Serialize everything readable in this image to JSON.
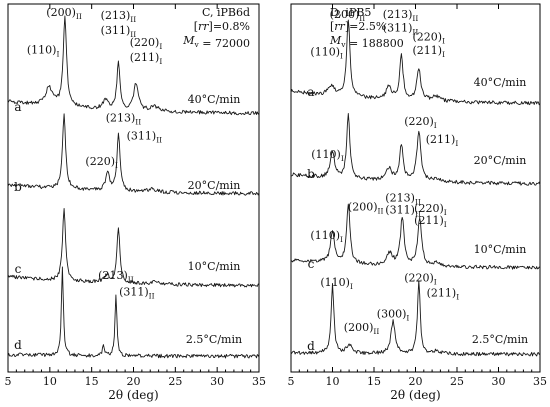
{
  "chart_data": [
    {
      "type": "line",
      "panel": "C",
      "title_lines": [
        {
          "text": "C, iPB6d"
        },
        {
          "parts": [
            {
              "t": "["
            },
            {
              "t": "rr",
              "it": true
            },
            {
              "t": "]=0.8%"
            }
          ]
        },
        {
          "parts": [
            {
              "t": "M",
              "it": true
            },
            {
              "t": "v",
              "sub": true
            },
            {
              "t": " = 72000"
            }
          ]
        }
      ],
      "xlabel": "2θ (deg)",
      "ylabel": "",
      "xlim": [
        5,
        35
      ],
      "xticks": [
        5,
        10,
        15,
        20,
        25,
        30,
        35
      ],
      "grid": false,
      "series": [
        {
          "trace_label": "a",
          "rate": "40°C/min",
          "baseline": 0.04,
          "peaks": [
            [
              9.9,
              0.06,
              0.5
            ],
            [
              11.8,
              0.3,
              0.24
            ],
            [
              16.7,
              0.03,
              0.4
            ],
            [
              18.2,
              0.16,
              0.22
            ],
            [
              20.3,
              0.09,
              0.32
            ],
            [
              22.5,
              0.015,
              0.6
            ]
          ],
          "peak_labels": [
            {
              "x": 9.2,
              "y": 0.215,
              "parts": [
                {
                  "t": "(110)"
                },
                {
                  "t": "I",
                  "sub": true
                }
              ]
            },
            {
              "x": 11.7,
              "y": 0.34,
              "parts": [
                {
                  "t": "(200)"
                },
                {
                  "t": "II",
                  "sub": true
                }
              ]
            },
            {
              "x": 18.2,
              "y": 0.33,
              "parts": [
                {
                  "t": "(213)"
                },
                {
                  "t": "II",
                  "sub": true
                }
              ]
            },
            {
              "x": 18.2,
              "y": 0.28,
              "parts": [
                {
                  "t": "(311)"
                },
                {
                  "t": "II",
                  "sub": true
                }
              ]
            },
            {
              "x": 21.5,
              "y": 0.24,
              "parts": [
                {
                  "t": "(220)"
                },
                {
                  "t": "I",
                  "sub": true
                }
              ]
            },
            {
              "x": 21.5,
              "y": 0.19,
              "parts": [
                {
                  "t": "(211)"
                },
                {
                  "t": "I",
                  "sub": true
                }
              ]
            }
          ]
        },
        {
          "trace_label": "b",
          "rate": "20°C/min",
          "baseline": 0.03,
          "peaks": [
            [
              11.7,
              0.25,
              0.22
            ],
            [
              16.9,
              0.06,
              0.28
            ],
            [
              18.2,
              0.19,
              0.22
            ],
            [
              22.2,
              0.01,
              0.6
            ]
          ],
          "peak_labels": [
            {
              "x": 16.2,
              "y": 0.11,
              "parts": [
                {
                  "t": "(220)"
                },
                {
                  "t": "I",
                  "sub": true
                }
              ]
            },
            {
              "x": 18.8,
              "y": 0.255,
              "parts": [
                {
                  "t": "(213)"
                },
                {
                  "t": "II",
                  "sub": true
                }
              ]
            },
            {
              "x": 21.3,
              "y": 0.195,
              "parts": [
                {
                  "t": "(311)"
                },
                {
                  "t": "II",
                  "sub": true
                }
              ]
            }
          ]
        },
        {
          "trace_label": "c",
          "rate": "10°C/min",
          "baseline": 0.03,
          "peaks": [
            [
              11.7,
              0.24,
              0.22
            ],
            [
              16.8,
              0.025,
              0.4
            ],
            [
              18.2,
              0.18,
              0.22
            ],
            [
              22.6,
              0.01,
              0.6
            ]
          ],
          "peak_labels": []
        },
        {
          "trace_label": "d",
          "rate": "2.5°C/min",
          "baseline": 0.005,
          "peaks": [
            [
              11.5,
              0.29,
              0.14
            ],
            [
              16.4,
              0.04,
              0.12
            ],
            [
              17.9,
              0.2,
              0.14
            ]
          ],
          "peak_labels": [
            {
              "x": 17.9,
              "y": 0.27,
              "parts": [
                {
                  "t": "(213)"
                },
                {
                  "t": "II",
                  "sub": true
                }
              ]
            },
            {
              "x": 20.4,
              "y": 0.215,
              "parts": [
                {
                  "t": "(311)"
                },
                {
                  "t": "II",
                  "sub": true
                }
              ]
            }
          ]
        }
      ]
    },
    {
      "type": "line",
      "panel": "D",
      "title_lines": [
        {
          "text": "D, iPB5"
        },
        {
          "parts": [
            {
              "t": "["
            },
            {
              "t": "rr",
              "it": true
            },
            {
              "t": "]=2.5%"
            }
          ]
        },
        {
          "parts": [
            {
              "t": "M",
              "it": true
            },
            {
              "t": "v",
              "sub": true
            },
            {
              "t": " = 188800"
            }
          ]
        }
      ],
      "xlabel": "2θ (deg)",
      "ylabel": "",
      "xlim": [
        5,
        35
      ],
      "xticks": [
        5,
        10,
        15,
        20,
        25,
        30,
        35
      ],
      "grid": false,
      "series": [
        {
          "trace_label": "a",
          "rate": "40°C/min",
          "baseline": 0.04,
          "peaks": [
            [
              9.9,
              0.03,
              0.5
            ],
            [
              11.9,
              0.26,
              0.24
            ],
            [
              16.8,
              0.04,
              0.4
            ],
            [
              18.3,
              0.15,
              0.24
            ],
            [
              20.4,
              0.1,
              0.3
            ],
            [
              22.5,
              0.015,
              0.6
            ]
          ],
          "peak_labels": [
            {
              "x": 9.3,
              "y": 0.175,
              "parts": [
                {
                  "t": "(110)"
                },
                {
                  "t": "I",
                  "sub": true
                }
              ]
            },
            {
              "x": 11.8,
              "y": 0.3,
              "parts": [
                {
                  "t": "(200)"
                },
                {
                  "t": "II",
                  "sub": true
                }
              ]
            },
            {
              "x": 18.2,
              "y": 0.3,
              "parts": [
                {
                  "t": "(213)"
                },
                {
                  "t": "II",
                  "sub": true
                }
              ]
            },
            {
              "x": 18.2,
              "y": 0.255,
              "parts": [
                {
                  "t": "(311)"
                },
                {
                  "t": "II",
                  "sub": true
                }
              ]
            },
            {
              "x": 21.6,
              "y": 0.225,
              "parts": [
                {
                  "t": "(220)"
                },
                {
                  "t": "I",
                  "sub": true
                }
              ]
            },
            {
              "x": 21.6,
              "y": 0.18,
              "parts": [
                {
                  "t": "(211)"
                },
                {
                  "t": "I",
                  "sub": true
                }
              ]
            }
          ]
        },
        {
          "trace_label": "b",
          "rate": "20°C/min",
          "baseline": 0.03,
          "peaks": [
            [
              10.0,
              0.09,
              0.3
            ],
            [
              11.9,
              0.22,
              0.22
            ],
            [
              16.8,
              0.04,
              0.4
            ],
            [
              18.3,
              0.12,
              0.26
            ],
            [
              20.4,
              0.17,
              0.28
            ],
            [
              22.5,
              0.01,
              0.6
            ]
          ],
          "peak_labels": [
            {
              "x": 9.4,
              "y": 0.1,
              "parts": [
                {
                  "t": "(110)"
                },
                {
                  "t": "I",
                  "sub": true
                }
              ]
            },
            {
              "x": 20.6,
              "y": 0.21,
              "parts": [
                {
                  "t": "(220)"
                },
                {
                  "t": "I",
                  "sub": true
                }
              ]
            },
            {
              "x": 23.2,
              "y": 0.15,
              "parts": [
                {
                  "t": "(211)"
                },
                {
                  "t": "I",
                  "sub": true
                }
              ]
            }
          ]
        },
        {
          "trace_label": "c",
          "rate": "10°C/min",
          "baseline": 0.025,
          "peaks": [
            [
              10.0,
              0.1,
              0.3
            ],
            [
              11.9,
              0.2,
              0.24
            ],
            [
              16.9,
              0.04,
              0.4
            ],
            [
              18.4,
              0.16,
              0.26
            ],
            [
              20.5,
              0.16,
              0.28
            ],
            [
              22.6,
              0.01,
              0.6
            ]
          ],
          "peak_labels": [
            {
              "x": 9.3,
              "y": 0.11,
              "parts": [
                {
                  "t": "(110)"
                },
                {
                  "t": "I",
                  "sub": true
                }
              ]
            },
            {
              "x": 14.0,
              "y": 0.205,
              "parts": [
                {
                  "t": "(200)"
                },
                {
                  "t": "II",
                  "sub": true
                }
              ]
            },
            {
              "x": 18.5,
              "y": 0.235,
              "parts": [
                {
                  "t": "(213)"
                },
                {
                  "t": "II",
                  "sub": true
                }
              ]
            },
            {
              "x": 18.5,
              "y": 0.195,
              "parts": [
                {
                  "t": "(311)"
                },
                {
                  "t": "II",
                  "sub": true
                }
              ]
            },
            {
              "x": 21.8,
              "y": 0.2,
              "parts": [
                {
                  "t": "(220)"
                },
                {
                  "t": "I",
                  "sub": true
                }
              ]
            },
            {
              "x": 21.8,
              "y": 0.16,
              "parts": [
                {
                  "t": "(211)"
                },
                {
                  "t": "I",
                  "sub": true
                }
              ]
            }
          ]
        },
        {
          "trace_label": "d",
          "rate": "2.5°C/min",
          "baseline": 0.005,
          "peaks": [
            [
              10.0,
              0.23,
              0.2
            ],
            [
              12.0,
              0.03,
              0.35
            ],
            [
              17.3,
              0.11,
              0.3
            ],
            [
              20.4,
              0.24,
              0.2
            ],
            [
              22.5,
              0.01,
              0.5
            ]
          ],
          "peak_labels": [
            {
              "x": 10.5,
              "y": 0.24,
              "parts": [
                {
                  "t": "(110)"
                },
                {
                  "t": "I",
                  "sub": true
                }
              ]
            },
            {
              "x": 20.6,
              "y": 0.255,
              "parts": [
                {
                  "t": "(220)"
                },
                {
                  "t": "I",
                  "sub": true
                }
              ]
            },
            {
              "x": 13.5,
              "y": 0.09,
              "parts": [
                {
                  "t": "(200)"
                },
                {
                  "t": "II",
                  "sub": true
                }
              ]
            },
            {
              "x": 17.3,
              "y": 0.135,
              "parts": [
                {
                  "t": "(300)"
                },
                {
                  "t": "I",
                  "sub": true
                }
              ]
            },
            {
              "x": 23.3,
              "y": 0.205,
              "parts": [
                {
                  "t": "(211)"
                },
                {
                  "t": "I",
                  "sub": true
                }
              ]
            }
          ]
        }
      ]
    }
  ]
}
